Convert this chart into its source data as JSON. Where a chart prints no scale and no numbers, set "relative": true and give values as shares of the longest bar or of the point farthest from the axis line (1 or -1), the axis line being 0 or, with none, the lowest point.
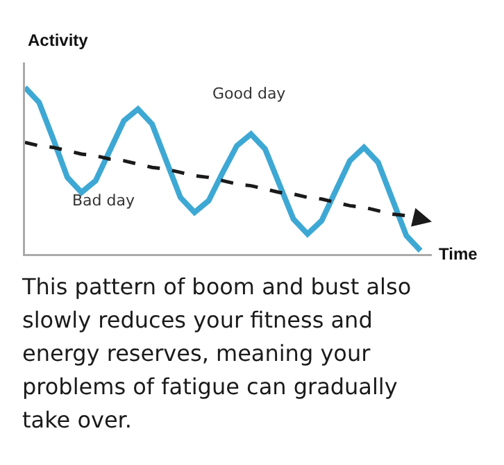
{
  "chart_data": {
    "type": "line",
    "xlabel": "Time",
    "ylabel": "Activity",
    "relative": true,
    "categories": [
      null,
      null,
      null,
      null,
      null,
      null,
      null,
      null,
      null,
      null,
      null,
      null,
      null,
      null,
      null,
      null,
      null,
      null,
      null,
      null,
      null,
      null,
      null,
      null,
      null,
      null,
      null,
      null,
      null
    ],
    "series": [
      {
        "color": "#3ea8d4",
        "values": [
          1.0,
          0.91,
          0.69,
          0.46,
          0.37,
          0.44,
          0.62,
          0.8,
          0.87,
          0.78,
          0.56,
          0.34,
          0.25,
          0.32,
          0.49,
          0.65,
          0.72,
          0.63,
          0.42,
          0.21,
          0.12,
          0.2,
          0.38,
          0.56,
          0.64,
          0.55,
          0.33,
          0.11,
          0.02
        ]
      },
      {
        "type": "line",
        "color": "#1a1a1a",
        "line_style": "dashed",
        "values": [
          0.67,
          0.65,
          0.64,
          0.62,
          0.6,
          0.59,
          0.57,
          0.56,
          0.54,
          0.52,
          0.51,
          0.49,
          0.47,
          0.46,
          0.44,
          0.42,
          0.41,
          0.39,
          0.37,
          0.36,
          0.34,
          0.33,
          0.31,
          0.29,
          0.28,
          0.26,
          0.24,
          0.23,
          0.21
        ]
      }
    ],
    "annotations": [
      "Good day",
      "Bad day",
      "This pattern of boom and bust also slowly reduces your fitness and energy reserves, meaning your problems of fatigue can gradually take over."
    ]
  }
}
